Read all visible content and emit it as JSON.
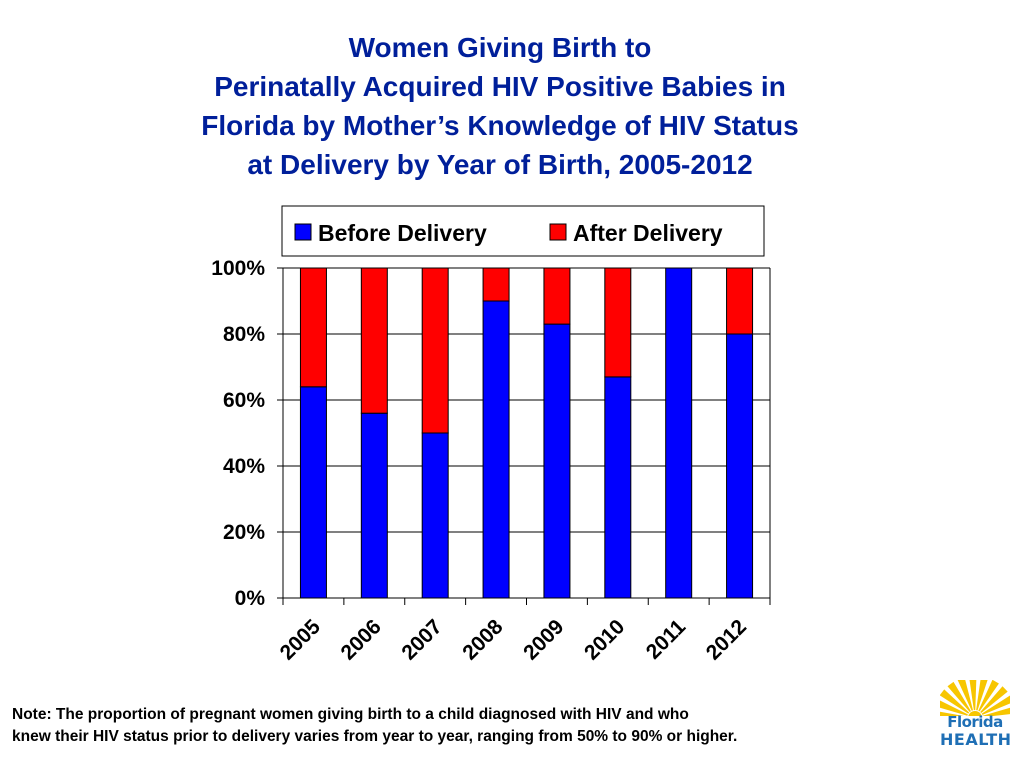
{
  "slide": {
    "title_lines": [
      "Women Giving Birth to",
      "Perinatally Acquired HIV Positive Babies in",
      "Florida by Mother’s Knowledge of HIV Status",
      "at Delivery by Year of Birth, 2005-2012"
    ],
    "note_lines": [
      "Note:  The proportion of pregnant women giving birth to a child diagnosed with HIV and who",
      "knew their HIV status prior to delivery varies from year to year, ranging from 50% to 90% or higher."
    ],
    "logo": {
      "line1": "Florida",
      "line2": "HEALTH"
    }
  },
  "colors": {
    "title": "#001f9a",
    "before": "#0000ff",
    "after": "#ff0000",
    "logo_blue": "#1f6fb5",
    "logo_yellow": "#f7c600"
  },
  "chart_data": {
    "type": "bar",
    "stacked": true,
    "categories": [
      "2005",
      "2006",
      "2007",
      "2008",
      "2009",
      "2010",
      "2011",
      "2012"
    ],
    "series": [
      {
        "name": "Before Delivery",
        "color": "#0000ff",
        "values": [
          64,
          56,
          50,
          90,
          83,
          67,
          100,
          80
        ]
      },
      {
        "name": "After Delivery",
        "color": "#ff0000",
        "values": [
          36,
          44,
          50,
          10,
          17,
          33,
          0,
          20
        ]
      }
    ],
    "ylim": [
      0,
      100
    ],
    "yticks": [
      "0%",
      "20%",
      "40%",
      "60%",
      "80%",
      "100%"
    ],
    "grid": true,
    "legend": "top"
  }
}
